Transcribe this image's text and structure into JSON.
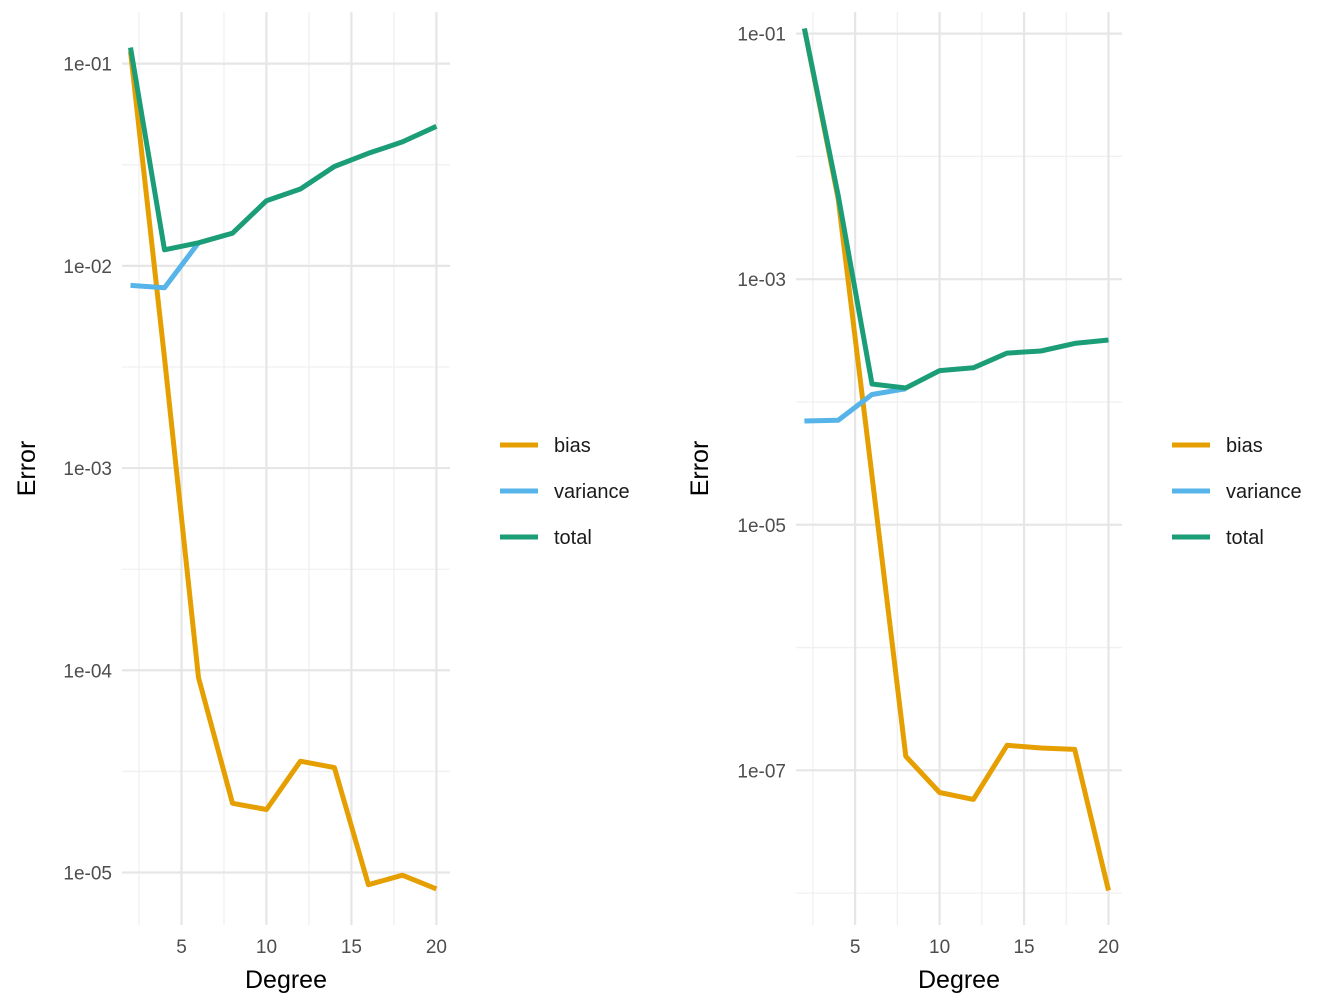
{
  "chart_data": [
    {
      "type": "line",
      "title": "",
      "xlabel": "Degree",
      "ylabel": "Error",
      "yscale": "log10",
      "grid": true,
      "legend_position": "right",
      "xlim": [
        1.5,
        20.8
      ],
      "x_ticks": [
        5,
        10,
        15,
        20
      ],
      "x_tick_labels": [
        "5",
        "10",
        "15",
        "20"
      ],
      "x_minor_ticks": [
        2.5,
        7.5,
        12.5,
        17.5
      ],
      "ylim": [
        5.5e-06,
        0.18
      ],
      "y_ticks": [
        0.1,
        0.01,
        0.001,
        0.0001,
        1e-05
      ],
      "y_tick_labels": [
        "1e-01",
        "1e-02",
        "1e-03",
        "1e-04",
        "1e-05"
      ],
      "y_minor_ticks": [
        0.0316,
        0.00316,
        0.000316,
        3.16e-05
      ],
      "x": [
        2,
        4,
        6,
        8,
        10,
        12,
        14,
        16,
        18,
        20
      ],
      "series": [
        {
          "name": "bias",
          "color": "#E69F00",
          "x": [
            2,
            4,
            6,
            8,
            10,
            12,
            14,
            16,
            18,
            20
          ],
          "values": [
            0.115,
            0.0035,
            9.2e-05,
            2.2e-05,
            2.05e-05,
            3.55e-05,
            3.3e-05,
            8.7e-06,
            9.7e-06,
            8.3e-06
          ]
        },
        {
          "name": "variance",
          "color": "#56B4E9",
          "x": [
            2,
            4,
            6
          ],
          "values": [
            0.008,
            0.0078,
            0.013
          ]
        },
        {
          "name": "total",
          "color": "#1B9E77",
          "x": [
            2,
            4,
            6,
            8,
            10,
            12,
            14,
            16,
            18,
            20
          ],
          "values": [
            0.12,
            0.012,
            0.013,
            0.0145,
            0.021,
            0.024,
            0.031,
            0.036,
            0.041,
            0.049
          ]
        }
      ]
    },
    {
      "type": "line",
      "title": "",
      "xlabel": "Degree",
      "ylabel": "Error",
      "yscale": "log10",
      "grid": true,
      "legend_position": "right",
      "xlim": [
        1.5,
        20.8
      ],
      "x_ticks": [
        5,
        10,
        15,
        20
      ],
      "x_tick_labels": [
        "5",
        "10",
        "15",
        "20"
      ],
      "x_minor_ticks": [
        2.5,
        7.5,
        12.5,
        17.5
      ],
      "ylim": [
        5.5e-09,
        0.15
      ],
      "y_ticks": [
        0.1,
        0.001,
        1e-05,
        1e-07
      ],
      "y_tick_labels": [
        "1e-01",
        "1e-03",
        "1e-05",
        "1e-07"
      ],
      "y_minor_ticks": [
        0.01,
        0.0001,
        1e-06,
        1e-08
      ],
      "x": [
        2,
        4,
        6,
        8,
        10,
        12,
        14,
        16,
        18,
        20
      ],
      "series": [
        {
          "name": "bias",
          "color": "#E69F00",
          "x": [
            2,
            4,
            6,
            8,
            10,
            12,
            14,
            16,
            18,
            20
          ],
          "values": [
            0.11,
            0.0045,
            2.5e-05,
            1.3e-07,
            6.6e-08,
            5.8e-08,
            1.6e-07,
            1.52e-07,
            1.48e-07,
            1.05e-08
          ]
        },
        {
          "name": "variance",
          "color": "#56B4E9",
          "x": [
            2,
            4,
            6,
            8
          ],
          "values": [
            7e-05,
            7.1e-05,
            0.000115,
            0.000128
          ]
        },
        {
          "name": "total",
          "color": "#1B9E77",
          "x": [
            2,
            4,
            6,
            8,
            10,
            12,
            14,
            16,
            18,
            20
          ],
          "values": [
            0.11,
            0.0048,
            0.00014,
            0.00013,
            0.00018,
            0.00019,
            0.00025,
            0.00026,
            0.0003,
            0.00032
          ]
        }
      ]
    }
  ]
}
